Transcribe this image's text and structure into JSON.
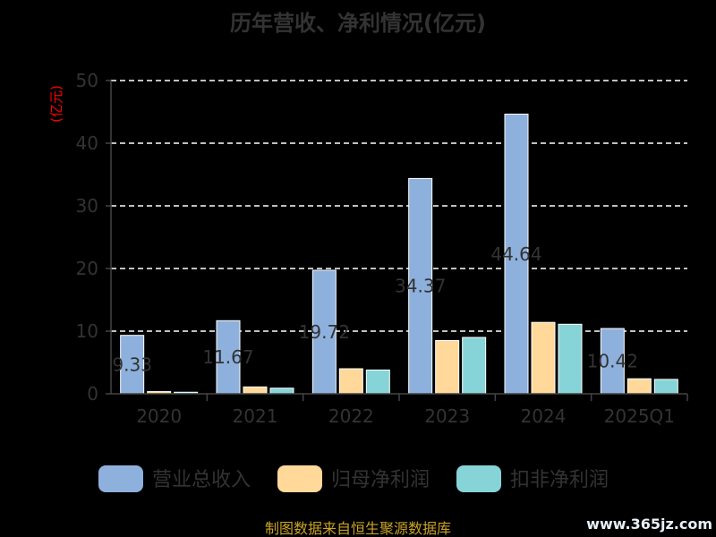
{
  "chart_data": {
    "type": "bar",
    "title": "历年营收、净利情况(亿元)",
    "ylabel": "(亿元)",
    "ylim": [
      0,
      50
    ],
    "yticks": [
      0,
      10,
      20,
      30,
      40,
      50
    ],
    "grid": true,
    "legend_position": "bottom",
    "categories": [
      "2020",
      "2021",
      "2022",
      "2023",
      "2024",
      "2025Q1"
    ],
    "series": [
      {
        "name": "营业总收入",
        "color": "#8eb0dc",
        "values": [
          9.33,
          11.67,
          19.72,
          34.37,
          44.64,
          10.42
        ]
      },
      {
        "name": "归母净利润",
        "color": "#ffd89a",
        "values": [
          0.35,
          1.1,
          4.0,
          8.5,
          11.4,
          2.4
        ]
      },
      {
        "name": "扣非净利润",
        "color": "#86d4d8",
        "values": [
          0.25,
          0.9,
          3.8,
          9.0,
          11.1,
          2.3
        ]
      }
    ],
    "data_labels": [
      "9.33",
      "11.67",
      "19.72",
      "34.37",
      "44.64",
      "10.42"
    ]
  },
  "footer": {
    "source": "制图数据来自恒生聚源数据库",
    "watermark": "www.365jz.com"
  }
}
